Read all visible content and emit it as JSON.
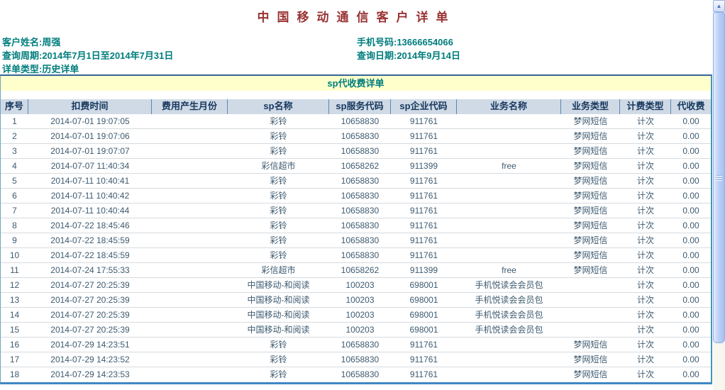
{
  "header": {
    "title": "中国移动通信客户详单"
  },
  "info": {
    "rows": [
      {
        "left": "客户姓名:周强",
        "right": "手机号码:13666654066"
      },
      {
        "left": "查询周期:2014年7月1日至2014年7月31日",
        "right": "查询日期:2014年9月14日"
      },
      {
        "left": "详单类型:历史详单",
        "right": ""
      }
    ]
  },
  "section": {
    "title": "sp代收费详单"
  },
  "table": {
    "headers": [
      "序号",
      "扣费时间",
      "费用产生月份",
      "sp名称",
      "sp服务代码",
      "sp企业代码",
      "业务名称",
      "业务类型",
      "计费类型",
      "代收费"
    ],
    "rows": [
      [
        "1",
        "2014-07-01 19:07:05",
        "",
        "彩铃",
        "10658830",
        "911761",
        "",
        "梦网短信",
        "计次",
        "0.00"
      ],
      [
        "2",
        "2014-07-01 19:07:06",
        "",
        "彩铃",
        "10658830",
        "911761",
        "",
        "梦网短信",
        "计次",
        "0.00"
      ],
      [
        "3",
        "2014-07-01 19:07:07",
        "",
        "彩铃",
        "10658830",
        "911761",
        "",
        "梦网短信",
        "计次",
        "0.00"
      ],
      [
        "4",
        "2014-07-07 11:40:34",
        "",
        "彩信超市",
        "10658262",
        "911399",
        "free",
        "梦网短信",
        "计次",
        "0.00"
      ],
      [
        "5",
        "2014-07-11 10:40:41",
        "",
        "彩铃",
        "10658830",
        "911761",
        "",
        "梦网短信",
        "计次",
        "0.00"
      ],
      [
        "6",
        "2014-07-11 10:40:42",
        "",
        "彩铃",
        "10658830",
        "911761",
        "",
        "梦网短信",
        "计次",
        "0.00"
      ],
      [
        "7",
        "2014-07-11 10:40:44",
        "",
        "彩铃",
        "10658830",
        "911761",
        "",
        "梦网短信",
        "计次",
        "0.00"
      ],
      [
        "8",
        "2014-07-22 18:45:46",
        "",
        "彩铃",
        "10658830",
        "911761",
        "",
        "梦网短信",
        "计次",
        "0.00"
      ],
      [
        "9",
        "2014-07-22 18:45:59",
        "",
        "彩铃",
        "10658830",
        "911761",
        "",
        "梦网短信",
        "计次",
        "0.00"
      ],
      [
        "10",
        "2014-07-22 18:45:59",
        "",
        "彩铃",
        "10658830",
        "911761",
        "",
        "梦网短信",
        "计次",
        "0.00"
      ],
      [
        "11",
        "2014-07-24 17:55:33",
        "",
        "彩信超市",
        "10658262",
        "911399",
        "free",
        "梦网短信",
        "计次",
        "0.00"
      ],
      [
        "12",
        "2014-07-27 20:25:39",
        "",
        "中国移动-和阅读",
        "100203",
        "698001",
        "手机悦读会会员包",
        "",
        "计次",
        "0.00"
      ],
      [
        "13",
        "2014-07-27 20:25:39",
        "",
        "中国移动-和阅读",
        "100203",
        "698001",
        "手机悦读会会员包",
        "",
        "计次",
        "0.00"
      ],
      [
        "14",
        "2014-07-27 20:25:39",
        "",
        "中国移动-和阅读",
        "100203",
        "698001",
        "手机悦读会会员包",
        "",
        "计次",
        "0.00"
      ],
      [
        "15",
        "2014-07-27 20:25:39",
        "",
        "中国移动-和阅读",
        "100203",
        "698001",
        "手机悦读会会员包",
        "",
        "计次",
        "0.00"
      ],
      [
        "16",
        "2014-07-29 14:23:51",
        "",
        "彩铃",
        "10658830",
        "911761",
        "",
        "梦网短信",
        "计次",
        "0.00"
      ],
      [
        "17",
        "2014-07-29 14:23:52",
        "",
        "彩铃",
        "10658830",
        "911761",
        "",
        "梦网短信",
        "计次",
        "0.00"
      ],
      [
        "18",
        "2014-07-29 14:23:53",
        "",
        "彩铃",
        "10658830",
        "911761",
        "",
        "梦网短信",
        "计次",
        "0.00"
      ]
    ]
  },
  "scrollbar": {
    "up_arrow": "▲"
  },
  "colors": {
    "title_text": "#993333",
    "info_text": "#007d7d",
    "section_bg": "#ffffcc",
    "header_bg": "#cfdae6",
    "header_text": "#17375e",
    "table_border_top": "#336699",
    "table_border_bottom": "#3f87c5",
    "row_text": "#3d5a70"
  }
}
